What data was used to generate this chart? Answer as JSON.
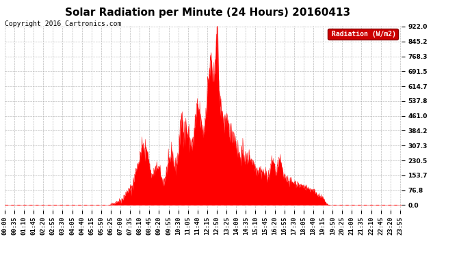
{
  "title": "Solar Radiation per Minute (24 Hours) 20160413",
  "copyright_text": "Copyright 2016 Cartronics.com",
  "legend_label": "Radiation (W/m2)",
  "y_ticks": [
    0.0,
    76.8,
    153.7,
    230.5,
    307.3,
    384.2,
    461.0,
    537.8,
    614.7,
    691.5,
    768.3,
    845.2,
    922.0
  ],
  "y_max": 922.0,
  "fill_color": "#FF0000",
  "line_color": "#FF0000",
  "bg_color": "#FFFFFF",
  "grid_color": "#AAAAAA",
  "dashed_line_color": "#FF0000",
  "title_fontsize": 11,
  "copyright_fontsize": 7,
  "tick_fontsize": 6.5,
  "legend_bg": "#CC0000",
  "legend_text_color": "#FFFFFF",
  "tick_step": 35
}
